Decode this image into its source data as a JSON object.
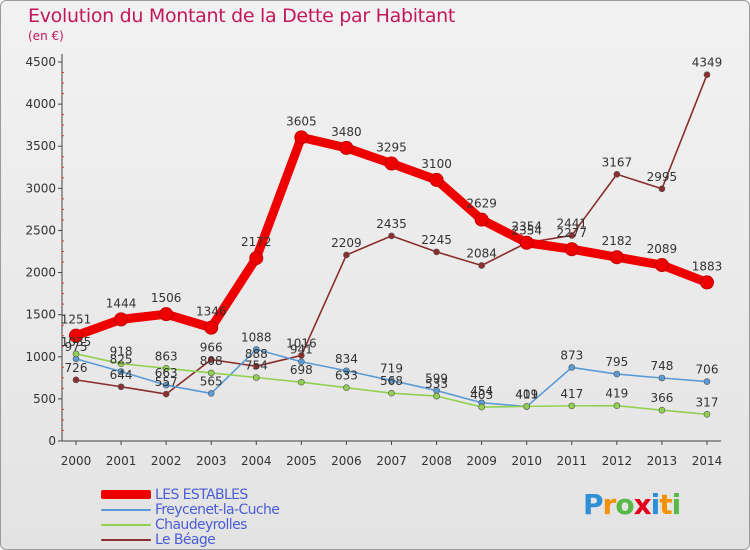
{
  "title": "Evolution du Montant de la Dette par Habitant",
  "subtitle": "(en €)",
  "logo": {
    "letters": [
      "P",
      "r",
      "o",
      "x",
      "i",
      "t",
      "i"
    ],
    "colors": [
      "#2f8fd6",
      "#f39200",
      "#59b947",
      "#e2001a",
      "#2f8fd6",
      "#f39200",
      "#59b947"
    ]
  },
  "chart_data": {
    "type": "line",
    "title": "Evolution du Montant de la Dette par Habitant",
    "subtitle": "(en €)",
    "categories": [
      "2000",
      "2001",
      "2002",
      "2003",
      "2004",
      "2005",
      "2006",
      "2007",
      "2008",
      "2009",
      "2010",
      "2011",
      "2012",
      "2013",
      "2014"
    ],
    "ylim": [
      0,
      4500
    ],
    "yticks": [
      "0",
      "500",
      "1000",
      "1500",
      "2000",
      "2500",
      "3000",
      "3500",
      "4000",
      "4500"
    ],
    "grid": false,
    "legend_position": "bottom-left",
    "series": [
      {
        "name": "LES ESTABLES",
        "color": "#ee0000",
        "values": [
          1251,
          1444,
          1506,
          1346,
          2172,
          3605,
          3480,
          3295,
          3100,
          2629,
          2354,
          2277,
          2182,
          2089,
          1883
        ],
        "labels": [
          "1251",
          "1444",
          "1506",
          "1346",
          "2172",
          "3605",
          "3480",
          "3295",
          "3100",
          "2629",
          "2354",
          "2277",
          "2182",
          "2089",
          "1883"
        ]
      },
      {
        "name": "Freycenet-la-Cuche",
        "color": "#5b9bd5",
        "values": [
          975,
          825,
          663,
          565,
          1088,
          941,
          834,
          719,
          599,
          454,
          409,
          873,
          795,
          748,
          706
        ],
        "labels": [
          "975",
          "825",
          "663",
          "565",
          "1088",
          "941",
          "834",
          "719",
          "599",
          "454",
          "409",
          "873",
          "795",
          "748",
          "706"
        ]
      },
      {
        "name": "Chaudeyrolles",
        "color": "#92d050",
        "values": [
          1035,
          918,
          863,
          808,
          754,
          698,
          633,
          568,
          533,
          403,
          411,
          417,
          419,
          366,
          317
        ],
        "labels": [
          "1035",
          "918",
          "863",
          "808",
          "754",
          "698",
          "633",
          "568",
          "533",
          "403",
          "411",
          "417",
          "419",
          "366",
          "317"
        ]
      },
      {
        "name": "Le Béage",
        "color": "#8b2e2e",
        "values": [
          726,
          644,
          557,
          966,
          888,
          1016,
          2209,
          2435,
          2245,
          2084,
          2354,
          2441,
          3167,
          2995,
          4349
        ],
        "labels": [
          "726",
          "644",
          "557",
          "966",
          "888",
          "1016",
          "2209",
          "2435",
          "2245",
          "2084",
          "2354",
          "2441",
          "3167",
          "2995",
          "4349"
        ]
      }
    ]
  }
}
